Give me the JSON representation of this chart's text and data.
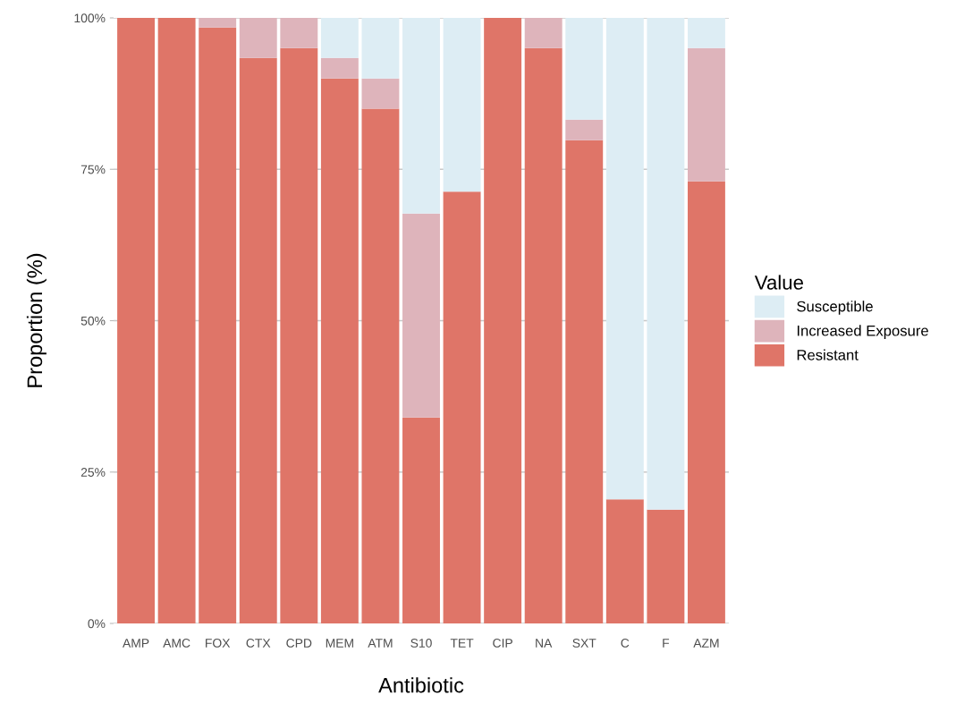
{
  "chart_data": {
    "type": "bar",
    "stacked": true,
    "xlabel": "Antibiotic",
    "ylabel": "Proportion (%)",
    "legend_title": "Value",
    "legend": "right",
    "grid": "y",
    "categories": [
      "AMP",
      "AMC",
      "FOX",
      "CTX",
      "CPD",
      "MEM",
      "ATM",
      "S10",
      "TET",
      "CIP",
      "NA",
      "SXT",
      "C",
      "F",
      "AZM"
    ],
    "series": [
      {
        "name": "Resistant",
        "color": "#df7568",
        "values": [
          100,
          100,
          98.4,
          93.4,
          95,
          90,
          85,
          34,
          71.3,
          100,
          95,
          79.8,
          20.5,
          18.8,
          73
        ]
      },
      {
        "name": "Increased Exposure",
        "color": "#deb4bb",
        "values": [
          0,
          0,
          1.6,
          6.6,
          5,
          3.4,
          5,
          33.7,
          0,
          0,
          5,
          3.4,
          0,
          0,
          22
        ]
      },
      {
        "name": "Susceptible",
        "color": "#ddedf4",
        "values": [
          0,
          0,
          0,
          0,
          0,
          6.6,
          10,
          32.3,
          28.7,
          0,
          0,
          16.8,
          79.5,
          81.2,
          5
        ]
      }
    ],
    "ylim": [
      0,
      100
    ],
    "yticks": [
      {
        "value": 0,
        "label": "0%"
      },
      {
        "value": 25,
        "label": "25%"
      },
      {
        "value": 50,
        "label": "50%"
      },
      {
        "value": 75,
        "label": "75%"
      },
      {
        "value": 100,
        "label": "100%"
      }
    ]
  }
}
